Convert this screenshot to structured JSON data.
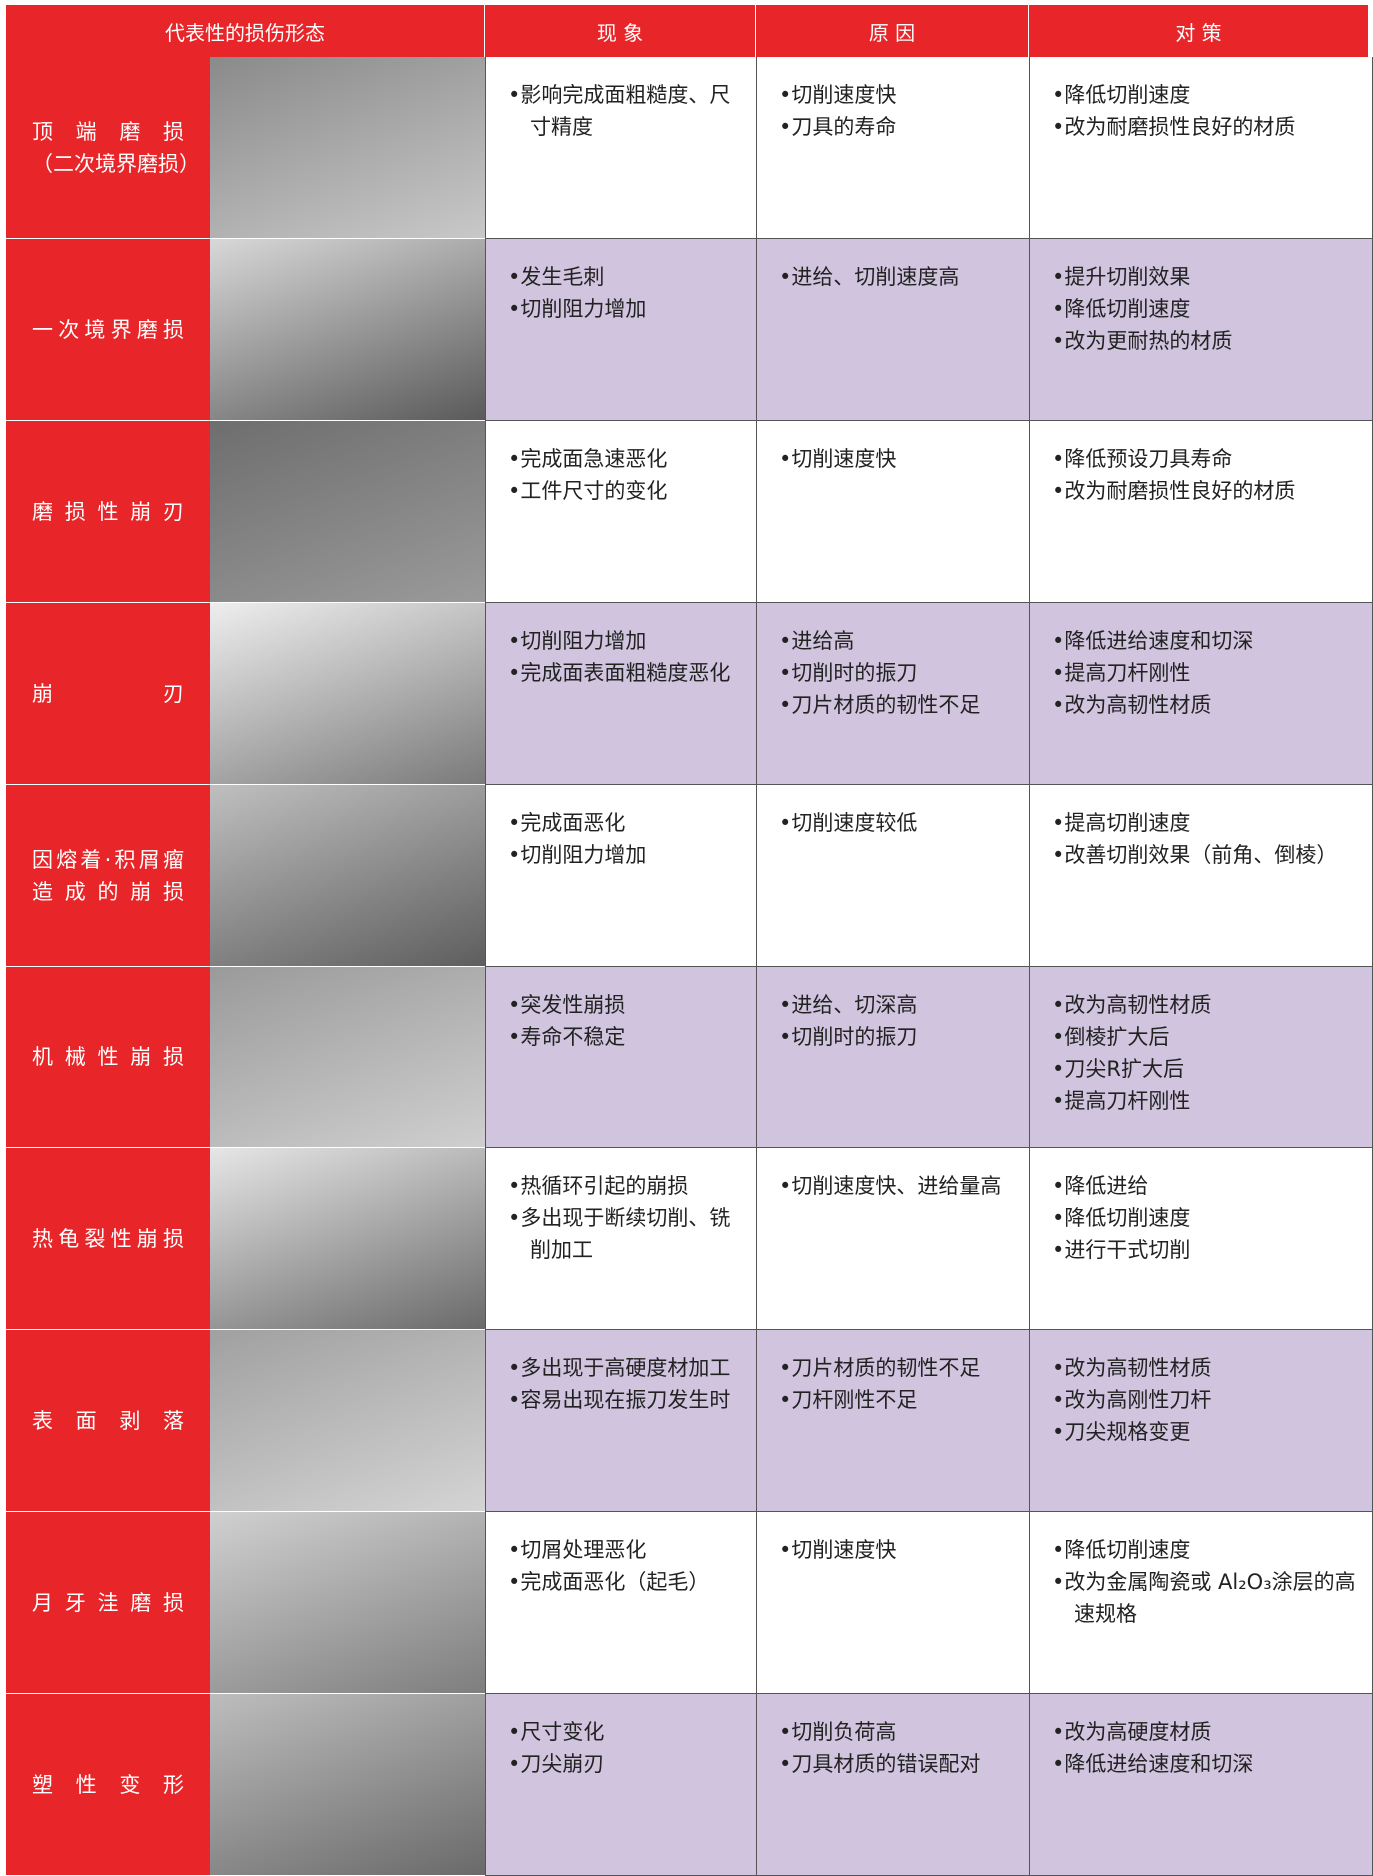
{
  "table": {
    "header": [
      "代表性的损伤形态",
      "现 象",
      "原 因",
      "对 策"
    ],
    "rows": [
      {
        "label": [
          "顶端磨损",
          "（二次境界磨损）"
        ],
        "phenomena": [
          "•影响完成面粗糙度、尺寸精度"
        ],
        "causes": [
          "•切削速度快",
          "•刀具的寿命"
        ],
        "measures": [
          "•降低切削速度",
          "•改为耐磨损性良好的材质"
        ]
      },
      {
        "label": [
          "一次境界磨损"
        ],
        "phenomena": [
          "•发生毛刺",
          "•切削阻力增加"
        ],
        "causes": [
          "•进给、切削速度高"
        ],
        "measures": [
          "•提升切削效果",
          "•降低切削速度",
          "•改为更耐热的材质"
        ]
      },
      {
        "label": [
          "磨损性崩刃"
        ],
        "phenomena": [
          "•完成面急速恶化",
          "•工件尺寸的变化"
        ],
        "causes": [
          "•切削速度快"
        ],
        "measures": [
          "•降低预设刀具寿命",
          "•改为耐磨损性良好的材质"
        ]
      },
      {
        "label": [
          "崩刃"
        ],
        "phenomena": [
          "•切削阻力增加",
          "•完成面表面粗糙度恶化"
        ],
        "causes": [
          "•进给高",
          "•切削时的振刀",
          "•刀片材质的韧性不足"
        ],
        "measures": [
          "•降低进给速度和切深",
          "•提高刀杆刚性",
          "•改为高韧性材质"
        ]
      },
      {
        "label": [
          "因熔着·积屑瘤",
          "造成的崩损"
        ],
        "phenomena": [
          "•完成面恶化",
          "•切削阻力增加"
        ],
        "causes": [
          "•切削速度较低"
        ],
        "measures": [
          "•提高切削速度",
          "•改善切削效果（前角、倒棱）"
        ]
      },
      {
        "label": [
          "机械性崩损"
        ],
        "phenomena": [
          "•突发性崩损",
          "•寿命不稳定"
        ],
        "causes": [
          "•进给、切深高",
          "•切削时的振刀"
        ],
        "measures": [
          "•改为高韧性材质",
          "•倒棱扩大后",
          "•刀尖R扩大后",
          "•提高刀杆刚性"
        ]
      },
      {
        "label": [
          "热龟裂性崩损"
        ],
        "phenomena": [
          "•热循环引起的崩损",
          "•多出现于断续切削、铣削加工"
        ],
        "causes": [
          "•切削速度快、进给量高"
        ],
        "measures": [
          "•降低进给",
          "•降低切削速度",
          "•进行干式切削"
        ]
      },
      {
        "label": [
          "表面剥落"
        ],
        "phenomena": [
          "•多出现于高硬度材加工",
          "•容易出现在振刀发生时"
        ],
        "causes": [
          "•刀片材质的韧性不足",
          "•刀杆刚性不足"
        ],
        "measures": [
          "•改为高韧性材质",
          "•改为高刚性刀杆",
          "•刀尖规格变更"
        ]
      },
      {
        "label": [
          "月牙洼磨损"
        ],
        "phenomena": [
          "•切屑处理恶化",
          "•完成面恶化（起毛）"
        ],
        "causes": [
          "•切削速度快"
        ],
        "measures": [
          "•降低切削速度",
          "•改为金属陶瓷或 Al₂O₃涂层的高速规格"
        ]
      },
      {
        "label": [
          "塑性变形"
        ],
        "phenomena": [
          "•尺寸变化",
          "•刀尖崩刃"
        ],
        "causes": [
          "•切削负荷高",
          "•刀具材质的错误配对"
        ],
        "measures": [
          "•改为高硬度材质",
          "•降低进给速度和切深"
        ]
      }
    ]
  }
}
